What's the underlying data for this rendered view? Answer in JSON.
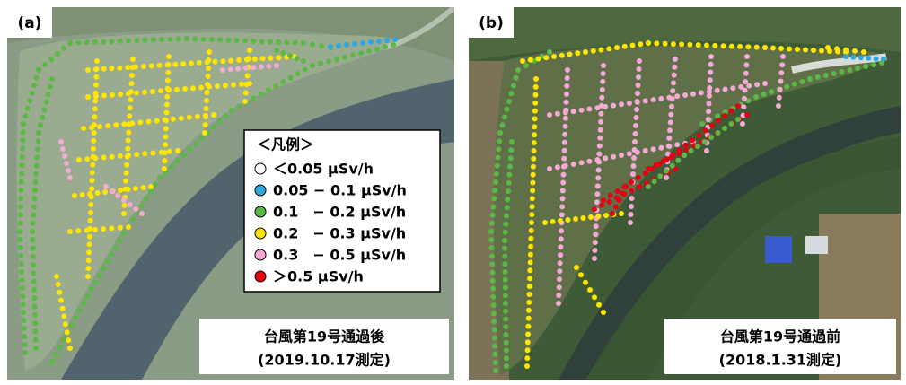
{
  "panels": [
    {
      "label": "(a)",
      "caption": [
        "台風第19号通過後",
        "(2019.10.17測定)"
      ]
    },
    {
      "label": "(b)",
      "caption": [
        "台風第19号通過前",
        "(2018.1.31測定)"
      ]
    }
  ],
  "legend": {
    "title": "＜凡例＞",
    "items": [
      {
        "color": "#ffffff",
        "label": "＜0.05 μSv/h"
      },
      {
        "color": "#2ea6e0",
        "label": "0.05 − 0.1 μSv/h"
      },
      {
        "color": "#5cb846",
        "label": "0.1　− 0.2 μSv/h"
      },
      {
        "color": "#ffe600",
        "label": "0.2　− 0.3 μSv/h"
      },
      {
        "color": "#f5a9d6",
        "label": "0.3　− 0.5 μSv/h"
      },
      {
        "color": "#e60012",
        "label": "＞0.5 μSv/h"
      }
    ]
  }
}
